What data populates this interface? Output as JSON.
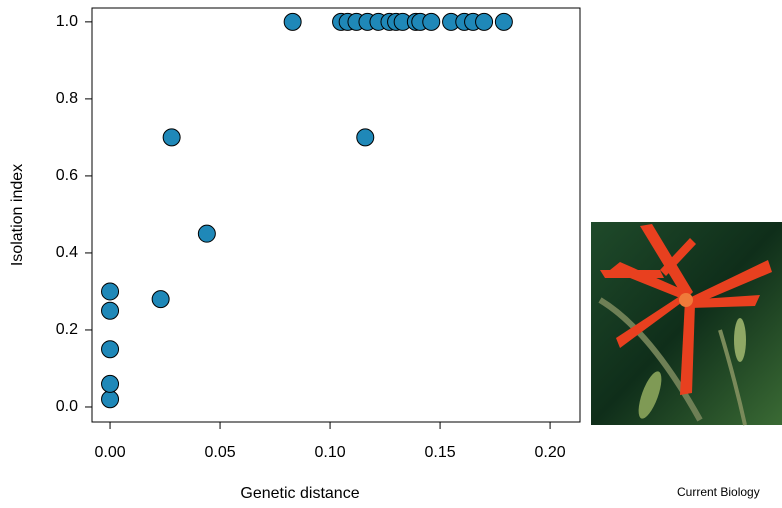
{
  "chart_data": {
    "type": "scatter",
    "x_label": "Genetic distance",
    "y_label": "Isolation index",
    "source": "Current Biology",
    "color": "#1f88b8",
    "x": [
      0,
      0,
      0,
      0,
      0,
      0.023,
      0.028,
      0.044,
      0.083,
      0.116,
      0.105,
      0.108,
      0.112,
      0.117,
      0.122,
      0.127,
      0.13,
      0.133,
      0.139,
      0.141,
      0.146,
      0.155,
      0.161,
      0.165,
      0.17,
      0.179
    ],
    "values": [
      0.02,
      0.06,
      0.15,
      0.25,
      0.3,
      0.28,
      0.7,
      0.45,
      1.0,
      0.7,
      1.0,
      1.0,
      1.0,
      1.0,
      1.0,
      1.0,
      1.0,
      1.0,
      1.0,
      1.0,
      1.0,
      1.0,
      1.0,
      1.0,
      1.0,
      1.0
    ],
    "xlim": [
      -0.0082,
      0.2136
    ],
    "ylim": [
      -0.039,
      1.036
    ],
    "xticks": [
      {
        "value": 0,
        "label": "0.00"
      },
      {
        "value": 0.05,
        "label": "0.05"
      },
      {
        "value": 0.1,
        "label": "0.10"
      },
      {
        "value": 0.15,
        "label": "0.15"
      },
      {
        "value": 0.2,
        "label": "0.20"
      }
    ],
    "yticks": [
      {
        "value": 0,
        "label": "0.0"
      },
      0.2,
      0.4,
      0.6,
      0.8,
      {
        "value": 1,
        "label": "1.0"
      }
    ],
    "grid": false
  }
}
